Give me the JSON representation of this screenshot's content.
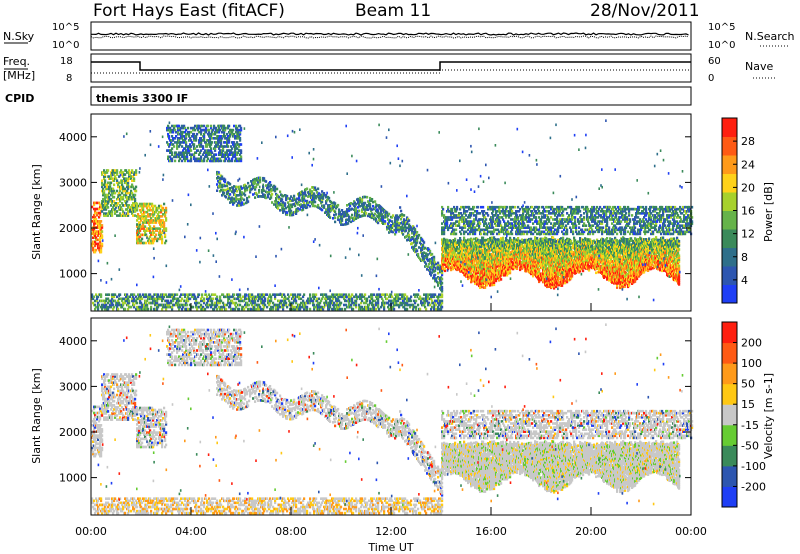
{
  "header": {
    "station": "Fort Hays East (fitACF)",
    "beam": "Beam 11",
    "date": "28/Nov/2011"
  },
  "status_panels": {
    "nsky_label": "N.Sky",
    "nsky_ticks": [
      "10^5",
      "10^0"
    ],
    "nsearch_label": "N.Search",
    "nsearch_ticks": [
      "10^5",
      "10^0"
    ],
    "freq_label_1": "Freq.",
    "freq_label_2": "[MHz]",
    "freq_ticks": [
      "18",
      "8"
    ],
    "nave_label": "Nave",
    "nave_ticks": [
      "60",
      "0"
    ],
    "cpid_label": "CPID",
    "cpid_value": "themis 3300 IF"
  },
  "chart_data": [
    {
      "type": "heatmap",
      "title": "Power",
      "ylabel": "Slant Range [km]",
      "xlabel": "",
      "xlim_hours": [
        0,
        24
      ],
      "ylim_km": [
        180,
        4500
      ],
      "y_ticks": [
        "1000",
        "2000",
        "3000",
        "4000"
      ],
      "colorbar": {
        "label": "Power [dB]",
        "ticks": [
          "4",
          "8",
          "12",
          "16",
          "20",
          "24",
          "28"
        ],
        "colors": [
          "#1f3ff5",
          "#2d56b0",
          "#2e6f8a",
          "#3a8a5a",
          "#66b34a",
          "#a7d12c",
          "#ffd21a",
          "#ff9a1a",
          "#ff5a14",
          "#ff1f0f"
        ]
      },
      "structures": [
        {
          "desc": "near-range",
          "t0": 0.0,
          "t1": 14.0,
          "r0": 250,
          "r1": 600,
          "level": 0.35
        },
        {
          "desc": "early burst",
          "t0": 0.0,
          "t1": 0.4,
          "r0": 1500,
          "r1": 2600,
          "level": 0.8
        },
        {
          "desc": "arc",
          "t0": 0.4,
          "t1": 1.8,
          "r0": 2300,
          "r1": 3300,
          "level": 0.45
        },
        {
          "desc": "arc2",
          "t0": 1.8,
          "t1": 3.0,
          "r0": 1700,
          "r1": 2600,
          "level": 0.6
        },
        {
          "desc": "high",
          "t0": 3.0,
          "t1": 6.0,
          "r0": 3500,
          "r1": 4300,
          "level": 0.25
        },
        {
          "desc": "descending",
          "t0": 5.0,
          "t1": 14.0,
          "r0": 2100,
          "r1": 3300,
          "level": 0.3
        },
        {
          "desc": "main",
          "t0": 14.0,
          "t1": 23.5,
          "r0": 900,
          "r1": 1800,
          "level": 0.85
        },
        {
          "desc": "upper bands",
          "t0": 14.0,
          "t1": 24.0,
          "r0": 1900,
          "r1": 2500,
          "level": 0.3
        }
      ]
    },
    {
      "type": "heatmap",
      "title": "Velocity",
      "ylabel": "Slant Range [km]",
      "xlabel": "Time UT",
      "xlim_hours": [
        0,
        24
      ],
      "ylim_km": [
        180,
        4500
      ],
      "x_ticks": [
        "00:00",
        "04:00",
        "08:00",
        "12:00",
        "16:00",
        "20:00",
        "00:00"
      ],
      "y_ticks": [
        "1000",
        "2000",
        "3000",
        "4000"
      ],
      "colorbar": {
        "label": "Velocity [m s-1]",
        "ticks": [
          "200",
          "100",
          "50",
          "15",
          "-15",
          "-50",
          "-100",
          "-200"
        ],
        "colors": [
          "#1f3ff5",
          "#2d56b0",
          "#3a8a5a",
          "#66cc33",
          "#c8c8c8",
          "#ffc814",
          "#ff9a1a",
          "#ff5a14",
          "#ff1f0f"
        ]
      }
    }
  ]
}
